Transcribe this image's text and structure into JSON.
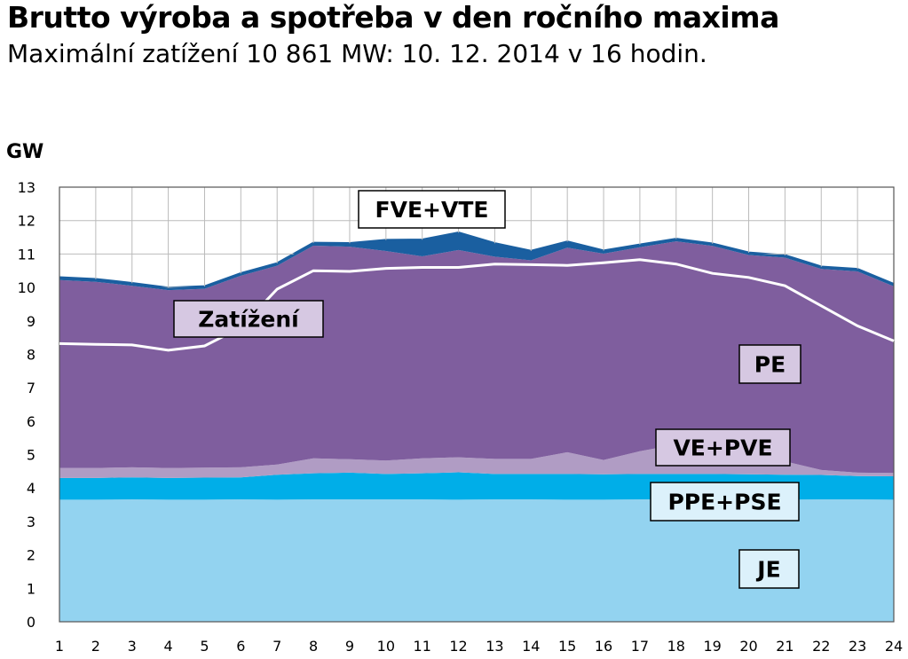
{
  "title": "Brutto výroba a spotřeba v den ročního maxima",
  "subtitle": "Maximální zatížení 10 861 MW: 10. 12. 2014 v 16 hodin.",
  "chart_data": {
    "type": "area",
    "stacked": true,
    "ylabel": "GW",
    "xlabel": "",
    "ylim": [
      0,
      13
    ],
    "yticks": [
      "0",
      "1",
      "2",
      "3",
      "4",
      "5",
      "6",
      "7",
      "8",
      "9",
      "10",
      "11",
      "12",
      "13"
    ],
    "x": [
      "1",
      "2",
      "3",
      "4",
      "5",
      "6",
      "7",
      "8",
      "9",
      "10",
      "11",
      "12",
      "13",
      "14",
      "15",
      "16",
      "17",
      "18",
      "19",
      "20",
      "21",
      "22",
      "23",
      "24"
    ],
    "grid": true,
    "series": [
      {
        "name": "JE",
        "color": "#93d3f0",
        "values": [
          3.65,
          3.65,
          3.66,
          3.65,
          3.65,
          3.66,
          3.65,
          3.66,
          3.66,
          3.66,
          3.66,
          3.65,
          3.66,
          3.66,
          3.65,
          3.65,
          3.66,
          3.66,
          3.66,
          3.65,
          3.65,
          3.66,
          3.66,
          3.65
        ]
      },
      {
        "name": "PPE+PSE",
        "color": "#00aee8",
        "values": [
          0.65,
          0.65,
          0.66,
          0.65,
          0.66,
          0.66,
          0.75,
          0.78,
          0.8,
          0.76,
          0.78,
          0.82,
          0.76,
          0.76,
          0.77,
          0.76,
          0.76,
          0.76,
          0.76,
          0.76,
          0.75,
          0.73,
          0.7,
          0.7
        ]
      },
      {
        "name": "VE+PVE",
        "color": "#b09cc4",
        "values": [
          0.3,
          0.3,
          0.3,
          0.3,
          0.3,
          0.3,
          0.3,
          0.45,
          0.4,
          0.4,
          0.45,
          0.45,
          0.45,
          0.45,
          0.65,
          0.43,
          0.68,
          0.88,
          0.8,
          0.5,
          0.4,
          0.15,
          0.1,
          0.1
        ]
      },
      {
        "name": "PE",
        "color": "#7f5e9e",
        "values": [
          5.62,
          5.57,
          5.43,
          5.32,
          5.35,
          5.73,
          5.95,
          6.36,
          6.36,
          6.27,
          6.04,
          6.2,
          6.05,
          5.94,
          6.12,
          6.17,
          6.1,
          6.08,
          6.02,
          6.06,
          6.09,
          6.01,
          6.02,
          5.58
        ]
      },
      {
        "name": "FVE+VTE",
        "color": "#1a5fa0",
        "values": [
          0.08,
          0.08,
          0.08,
          0.07,
          0.07,
          0.07,
          0.07,
          0.08,
          0.1,
          0.33,
          0.5,
          0.52,
          0.4,
          0.28,
          0.18,
          0.09,
          0.08,
          0.07,
          0.07,
          0.07,
          0.07,
          0.07,
          0.07,
          0.07
        ]
      }
    ],
    "line": {
      "name": "Zatížení",
      "color": "#ffffff",
      "values": [
        8.32,
        8.3,
        8.28,
        8.12,
        8.25,
        8.8,
        9.95,
        10.5,
        10.48,
        10.57,
        10.6,
        10.6,
        10.7,
        10.68,
        10.66,
        10.74,
        10.83,
        10.7,
        10.42,
        10.3,
        10.05,
        9.45,
        8.85,
        8.4
      ]
    },
    "labels": [
      {
        "text": "FVE+VTE",
        "bg": "#ffffff"
      },
      {
        "text": "Zatížení",
        "bg": "#d6c8e2"
      },
      {
        "text": "PE",
        "bg": "#d6c8e2"
      },
      {
        "text": "VE+PVE",
        "bg": "#d6c8e2"
      },
      {
        "text": "PPE+PSE",
        "bg": "#dcf1fb"
      },
      {
        "text": "JE",
        "bg": "#dcf1fb"
      }
    ]
  }
}
